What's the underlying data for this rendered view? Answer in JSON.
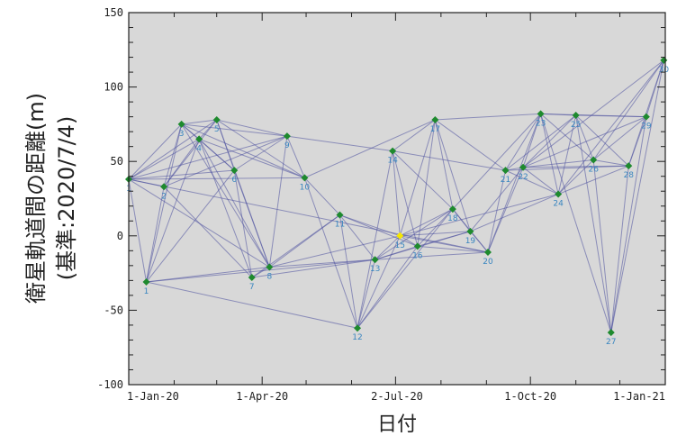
{
  "chart_data": {
    "type": "scatter",
    "title": "",
    "xlabel": "日付",
    "ylabel_line1": "衛星軌道間の距離(m)",
    "ylabel_line2": "(基準:2020/7/4)",
    "x_tick_labels": [
      "1-Jan-20",
      "1-Apr-20",
      "2-Jul-20",
      "1-Oct-20",
      "1-Jan-21"
    ],
    "x_tick_dates": [
      "2020-01-01",
      "2020-04-01",
      "2020-07-02",
      "2020-10-01",
      "2021-01-01"
    ],
    "xlim": [
      "2020-01-01",
      "2021-01-01"
    ],
    "y_ticks": [
      150,
      100,
      50,
      0,
      -50,
      -100
    ],
    "ylim": [
      -100,
      150
    ],
    "grid": false,
    "background": "#d8d8d8",
    "colors": {
      "point": "#1e8a2e",
      "reference_point": "#f5e600",
      "edge": "#4a4f9e",
      "label": "#3a86c0"
    },
    "points": [
      {
        "label": "1",
        "date": "2020-01-01",
        "y": 38
      },
      {
        "label": "1",
        "date": "2020-01-13",
        "y": -31
      },
      {
        "label": "2",
        "date": "2020-01-25",
        "y": 33
      },
      {
        "label": "3",
        "date": "2020-02-06",
        "y": 75
      },
      {
        "label": "4",
        "date": "2020-02-18",
        "y": 65
      },
      {
        "label": "5",
        "date": "2020-03-01",
        "y": 78
      },
      {
        "label": "6",
        "date": "2020-03-13",
        "y": 44
      },
      {
        "label": "7",
        "date": "2020-03-25",
        "y": -28
      },
      {
        "label": "8",
        "date": "2020-04-06",
        "y": -21
      },
      {
        "label": "9",
        "date": "2020-04-18",
        "y": 67
      },
      {
        "label": "10",
        "date": "2020-04-30",
        "y": 39
      },
      {
        "label": "11",
        "date": "2020-05-24",
        "y": 14
      },
      {
        "label": "12",
        "date": "2020-06-05",
        "y": -62
      },
      {
        "label": "13",
        "date": "2020-06-17",
        "y": -16
      },
      {
        "label": "14",
        "date": "2020-06-29",
        "y": 57
      },
      {
        "label": "15",
        "date": "2020-07-04",
        "y": 0,
        "reference": true
      },
      {
        "label": "16",
        "date": "2020-07-16",
        "y": -7
      },
      {
        "label": "17",
        "date": "2020-07-28",
        "y": 78
      },
      {
        "label": "18",
        "date": "2020-08-09",
        "y": 18
      },
      {
        "label": "19",
        "date": "2020-08-21",
        "y": 3
      },
      {
        "label": "20",
        "date": "2020-09-02",
        "y": -11
      },
      {
        "label": "21",
        "date": "2020-09-14",
        "y": 44
      },
      {
        "label": "22",
        "date": "2020-09-26",
        "y": 46
      },
      {
        "label": "23",
        "date": "2020-10-08",
        "y": 82
      },
      {
        "label": "24",
        "date": "2020-10-20",
        "y": 28
      },
      {
        "label": "25",
        "date": "2020-11-01",
        "y": 81
      },
      {
        "label": "26",
        "date": "2020-11-13",
        "y": 51
      },
      {
        "label": "27",
        "date": "2020-11-25",
        "y": -65
      },
      {
        "label": "28",
        "date": "2020-12-07",
        "y": 47
      },
      {
        "label": "29",
        "date": "2020-12-19",
        "y": 80
      },
      {
        "label": "30",
        "date": "2020-12-31",
        "y": 118
      }
    ],
    "edges": [
      [
        0,
        1
      ],
      [
        0,
        2
      ],
      [
        0,
        3
      ],
      [
        0,
        4
      ],
      [
        0,
        5
      ],
      [
        0,
        6
      ],
      [
        0,
        9
      ],
      [
        0,
        10
      ],
      [
        0,
        20
      ],
      [
        0,
        8
      ],
      [
        1,
        2
      ],
      [
        1,
        3
      ],
      [
        1,
        4
      ],
      [
        1,
        6
      ],
      [
        1,
        8
      ],
      [
        1,
        12
      ],
      [
        1,
        13
      ],
      [
        2,
        3
      ],
      [
        2,
        4
      ],
      [
        2,
        5
      ],
      [
        2,
        7
      ],
      [
        2,
        9
      ],
      [
        3,
        4
      ],
      [
        3,
        5
      ],
      [
        3,
        6
      ],
      [
        3,
        8
      ],
      [
        3,
        9
      ],
      [
        3,
        10
      ],
      [
        4,
        5
      ],
      [
        4,
        6
      ],
      [
        4,
        7
      ],
      [
        4,
        8
      ],
      [
        4,
        10
      ],
      [
        5,
        6
      ],
      [
        5,
        9
      ],
      [
        5,
        10
      ],
      [
        5,
        8
      ],
      [
        6,
        7
      ],
      [
        6,
        8
      ],
      [
        6,
        9
      ],
      [
        7,
        8
      ],
      [
        7,
        11
      ],
      [
        7,
        13
      ],
      [
        8,
        9
      ],
      [
        8,
        11
      ],
      [
        8,
        13
      ],
      [
        8,
        15
      ],
      [
        9,
        10
      ],
      [
        9,
        14
      ],
      [
        10,
        11
      ],
      [
        10,
        12
      ],
      [
        10,
        17
      ],
      [
        11,
        12
      ],
      [
        11,
        15
      ],
      [
        11,
        16
      ],
      [
        11,
        13
      ],
      [
        12,
        13
      ],
      [
        12,
        15
      ],
      [
        12,
        16
      ],
      [
        12,
        18
      ],
      [
        12,
        14
      ],
      [
        13,
        15
      ],
      [
        13,
        16
      ],
      [
        13,
        18
      ],
      [
        13,
        19
      ],
      [
        13,
        20
      ],
      [
        14,
        15
      ],
      [
        14,
        16
      ],
      [
        14,
        17
      ],
      [
        14,
        18
      ],
      [
        14,
        21
      ],
      [
        15,
        16
      ],
      [
        15,
        17
      ],
      [
        15,
        18
      ],
      [
        15,
        19
      ],
      [
        15,
        20
      ],
      [
        15,
        24
      ],
      [
        16,
        17
      ],
      [
        16,
        18
      ],
      [
        16,
        19
      ],
      [
        16,
        20
      ],
      [
        17,
        18
      ],
      [
        17,
        19
      ],
      [
        17,
        21
      ],
      [
        17,
        23
      ],
      [
        18,
        19
      ],
      [
        18,
        20
      ],
      [
        18,
        23
      ],
      [
        19,
        20
      ],
      [
        19,
        22
      ],
      [
        19,
        24
      ],
      [
        20,
        21
      ],
      [
        20,
        22
      ],
      [
        20,
        23
      ],
      [
        21,
        22
      ],
      [
        21,
        23
      ],
      [
        21,
        24
      ],
      [
        21,
        25
      ],
      [
        21,
        28
      ],
      [
        22,
        23
      ],
      [
        22,
        24
      ],
      [
        22,
        25
      ],
      [
        22,
        26
      ],
      [
        22,
        28
      ],
      [
        22,
        29
      ],
      [
        22,
        30
      ],
      [
        23,
        24
      ],
      [
        23,
        25
      ],
      [
        23,
        26
      ],
      [
        23,
        27
      ],
      [
        23,
        29
      ],
      [
        24,
        25
      ],
      [
        24,
        26
      ],
      [
        24,
        28
      ],
      [
        24,
        30
      ],
      [
        25,
        26
      ],
      [
        25,
        27
      ],
      [
        25,
        28
      ],
      [
        25,
        29
      ],
      [
        26,
        27
      ],
      [
        26,
        28
      ],
      [
        26,
        29
      ],
      [
        26,
        30
      ],
      [
        27,
        28
      ],
      [
        27,
        29
      ],
      [
        27,
        30
      ],
      [
        28,
        29
      ],
      [
        28,
        30
      ],
      [
        29,
        30
      ]
    ]
  }
}
